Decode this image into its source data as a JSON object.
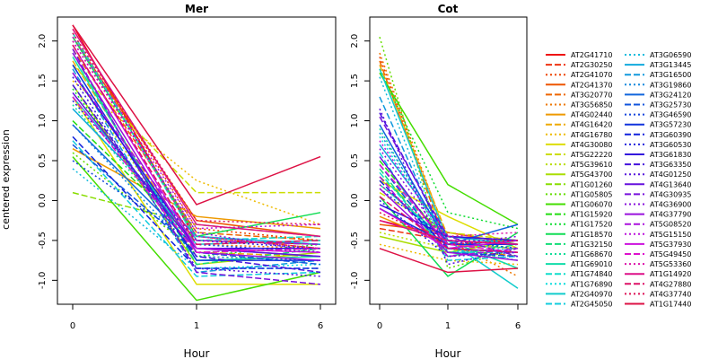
{
  "chart_data": [
    {
      "type": "line",
      "title": "Mer",
      "ylabel": "centered expression",
      "xlabel": "Hour",
      "x": [
        "0",
        "1",
        "6"
      ],
      "ylim": [
        -1.3,
        2.3
      ],
      "yticks": [
        "-1.0",
        "-0.5",
        "0.0",
        "0.5",
        "1.0",
        "1.5",
        "2.0"
      ],
      "series": [
        {
          "name": "AT2G41710",
          "values": [
            2.2,
            -0.5,
            -0.55
          ]
        },
        {
          "name": "AT2G30250",
          "values": [
            2.1,
            -0.45,
            -0.6
          ]
        },
        {
          "name": "AT2G41070",
          "values": [
            2.15,
            -0.35,
            -0.5
          ]
        },
        {
          "name": "AT2G41370",
          "values": [
            2.05,
            -0.25,
            -0.45
          ]
        },
        {
          "name": "AT3G20770",
          "values": [
            1.9,
            -0.4,
            -0.5
          ]
        },
        {
          "name": "AT3G56850",
          "values": [
            1.95,
            -0.55,
            -0.6
          ]
        },
        {
          "name": "AT4G02440",
          "values": [
            0.65,
            -0.2,
            -0.35
          ]
        },
        {
          "name": "AT4G16420",
          "values": [
            1.75,
            -0.65,
            -0.7
          ]
        },
        {
          "name": "AT4G16780",
          "values": [
            1.5,
            0.25,
            -0.3
          ]
        },
        {
          "name": "AT4G30080",
          "values": [
            1.3,
            -1.05,
            -1.05
          ]
        },
        {
          "name": "AT5G22220",
          "values": [
            1.7,
            0.1,
            0.1
          ]
        },
        {
          "name": "AT5G39610",
          "values": [
            1.6,
            -0.7,
            -0.75
          ]
        },
        {
          "name": "AT5G43700",
          "values": [
            1.45,
            -0.8,
            -0.65
          ]
        },
        {
          "name": "AT1G01260",
          "values": [
            0.1,
            -0.3,
            -0.45
          ]
        },
        {
          "name": "AT1G05805",
          "values": [
            0.6,
            -0.65,
            -0.6
          ]
        },
        {
          "name": "AT1G06070",
          "values": [
            0.55,
            -1.25,
            -0.9
          ]
        },
        {
          "name": "AT1G15920",
          "values": [
            1.0,
            -0.5,
            -0.55
          ]
        },
        {
          "name": "AT1G17520",
          "values": [
            1.4,
            -0.7,
            -0.55
          ]
        },
        {
          "name": "AT1G18570",
          "values": [
            2.05,
            -0.45,
            -0.15
          ]
        },
        {
          "name": "AT1G32150",
          "values": [
            1.85,
            -0.8,
            -0.6
          ]
        },
        {
          "name": "AT1G68670",
          "values": [
            1.2,
            -0.6,
            -0.65
          ]
        },
        {
          "name": "AT1G69010",
          "values": [
            1.8,
            -0.75,
            -0.7
          ]
        },
        {
          "name": "AT1G74840",
          "values": [
            2.1,
            -0.5,
            -0.45
          ]
        },
        {
          "name": "AT1G76890",
          "values": [
            1.55,
            -0.85,
            -0.8
          ]
        },
        {
          "name": "AT2G40970",
          "values": [
            1.3,
            -0.55,
            -0.5
          ]
        },
        {
          "name": "AT2G45050",
          "values": [
            0.75,
            -0.95,
            -0.9
          ]
        },
        {
          "name": "AT3G06590",
          "values": [
            0.4,
            -0.85,
            -0.85
          ]
        },
        {
          "name": "AT3G13445",
          "values": [
            1.15,
            -0.45,
            -0.55
          ]
        },
        {
          "name": "AT3G16500",
          "values": [
            1.65,
            -0.9,
            -0.75
          ]
        },
        {
          "name": "AT3G19860",
          "values": [
            0.95,
            -0.7,
            -0.75
          ]
        },
        {
          "name": "AT3G24120",
          "values": [
            0.95,
            -0.6,
            -0.7
          ]
        },
        {
          "name": "AT3G25730",
          "values": [
            0.7,
            -0.65,
            -0.8
          ]
        },
        {
          "name": "AT3G46590",
          "values": [
            0.5,
            -0.55,
            -0.65
          ]
        },
        {
          "name": "AT3G57230",
          "values": [
            1.7,
            -0.75,
            -0.75
          ]
        },
        {
          "name": "AT3G60390",
          "values": [
            0.8,
            -0.85,
            -0.85
          ]
        },
        {
          "name": "AT3G60530",
          "values": [
            1.25,
            -0.5,
            -0.6
          ]
        },
        {
          "name": "AT3G61830",
          "values": [
            1.6,
            -0.6,
            -0.6
          ]
        },
        {
          "name": "AT3G63350",
          "values": [
            1.45,
            -0.7,
            -0.9
          ]
        },
        {
          "name": "AT4G01250",
          "values": [
            1.55,
            -0.85,
            -0.95
          ]
        },
        {
          "name": "AT4G13640",
          "values": [
            1.35,
            -0.6,
            -0.7
          ]
        },
        {
          "name": "AT4G30935",
          "values": [
            1.9,
            -0.9,
            -1.05
          ]
        },
        {
          "name": "AT4G36900",
          "values": [
            2.0,
            -0.4,
            -0.65
          ]
        },
        {
          "name": "AT4G37790",
          "values": [
            1.85,
            -0.65,
            -0.75
          ]
        },
        {
          "name": "AT5G08520",
          "values": [
            1.6,
            -0.5,
            -0.55
          ]
        },
        {
          "name": "AT5G15150",
          "values": [
            2.05,
            -0.35,
            -0.3
          ]
        },
        {
          "name": "AT5G37930",
          "values": [
            1.95,
            -0.6,
            -0.65
          ]
        },
        {
          "name": "AT5G49450",
          "values": [
            1.3,
            -0.65,
            -0.6
          ]
        },
        {
          "name": "AT5G53360",
          "values": [
            2.0,
            -0.45,
            -0.6
          ]
        },
        {
          "name": "AT1G14920",
          "values": [
            2.15,
            -0.3,
            -0.45
          ]
        },
        {
          "name": "AT4G27880",
          "values": [
            1.95,
            -0.55,
            -0.5
          ]
        },
        {
          "name": "AT4G37740",
          "values": [
            2.1,
            -0.25,
            -0.3
          ]
        },
        {
          "name": "AT1G17440",
          "values": [
            2.2,
            -0.05,
            0.55
          ]
        }
      ]
    },
    {
      "type": "line",
      "title": "Cot",
      "xlabel": "Hour",
      "x": [
        "0",
        "1",
        "6"
      ],
      "ylim": [
        -1.3,
        2.3
      ],
      "yticks": [
        "-1.0",
        "-0.5",
        "0.0",
        "0.5",
        "1.0",
        "1.5",
        "2.0"
      ],
      "series": [
        {
          "name": "AT2G41710",
          "values": [
            -0.25,
            -0.45,
            -0.5
          ]
        },
        {
          "name": "AT2G30250",
          "values": [
            -0.35,
            -0.5,
            -0.55
          ]
        },
        {
          "name": "AT2G41070",
          "values": [
            1.8,
            -0.55,
            -0.6
          ]
        },
        {
          "name": "AT2G41370",
          "values": [
            -0.3,
            -0.4,
            -0.55
          ]
        },
        {
          "name": "AT3G20770",
          "values": [
            1.75,
            -0.6,
            -0.7
          ]
        },
        {
          "name": "AT3G56850",
          "values": [
            1.85,
            -0.5,
            -0.95
          ]
        },
        {
          "name": "AT4G02440",
          "values": [
            -0.2,
            -0.55,
            -0.6
          ]
        },
        {
          "name": "AT4G16420",
          "values": [
            1.7,
            -0.45,
            -0.55
          ]
        },
        {
          "name": "AT4G16780",
          "values": [
            -0.55,
            -0.75,
            -0.8
          ]
        },
        {
          "name": "AT4G30080",
          "values": [
            0.25,
            -0.2,
            -0.6
          ]
        },
        {
          "name": "AT5G22220",
          "values": [
            0.1,
            -0.4,
            -0.5
          ]
        },
        {
          "name": "AT5G39610",
          "values": [
            -0.4,
            -0.6,
            -0.65
          ]
        },
        {
          "name": "AT5G43700",
          "values": [
            -0.45,
            -0.65,
            -0.5
          ]
        },
        {
          "name": "AT1G01260",
          "values": [
            0.3,
            -0.45,
            -0.55
          ]
        },
        {
          "name": "AT1G05805",
          "values": [
            2.05,
            -0.85,
            -0.6
          ]
        },
        {
          "name": "AT1G06070",
          "values": [
            1.6,
            0.2,
            -0.3
          ]
        },
        {
          "name": "AT1G15920",
          "values": [
            0.5,
            -0.55,
            -0.5
          ]
        },
        {
          "name": "AT1G17520",
          "values": [
            1.65,
            -0.15,
            -0.35
          ]
        },
        {
          "name": "AT1G18570",
          "values": [
            0.05,
            -0.95,
            -0.4
          ]
        },
        {
          "name": "AT1G32150",
          "values": [
            0.4,
            -0.7,
            -0.55
          ]
        },
        {
          "name": "AT1G68670",
          "values": [
            0.9,
            -0.6,
            -0.75
          ]
        },
        {
          "name": "AT1G69010",
          "values": [
            0.2,
            -0.5,
            -0.85
          ]
        },
        {
          "name": "AT1G74840",
          "values": [
            0.35,
            -0.65,
            -0.65
          ]
        },
        {
          "name": "AT1G76890",
          "values": [
            0.8,
            -0.55,
            -0.6
          ]
        },
        {
          "name": "AT2G40970",
          "values": [
            1.65,
            -0.5,
            -1.1
          ]
        },
        {
          "name": "AT2G45050",
          "values": [
            0.6,
            -0.75,
            -0.7
          ]
        },
        {
          "name": "AT3G06590",
          "values": [
            1.55,
            -0.65,
            -0.6
          ]
        },
        {
          "name": "AT3G13445",
          "values": [
            0.7,
            -0.45,
            -0.55
          ]
        },
        {
          "name": "AT3G16500",
          "values": [
            1.3,
            -0.6,
            -0.65
          ]
        },
        {
          "name": "AT3G19860",
          "values": [
            0.85,
            -0.5,
            -0.5
          ]
        },
        {
          "name": "AT3G24120",
          "values": [
            0.95,
            -0.55,
            -0.3
          ]
        },
        {
          "name": "AT3G25730",
          "values": [
            0.45,
            -0.65,
            -0.7
          ]
        },
        {
          "name": "AT3G46590",
          "values": [
            0.15,
            -0.5,
            -0.6
          ]
        },
        {
          "name": "AT3G57230",
          "values": [
            -0.1,
            -0.55,
            -0.55
          ]
        },
        {
          "name": "AT3G60390",
          "values": [
            0.25,
            -0.6,
            -0.5
          ]
        },
        {
          "name": "AT3G60530",
          "values": [
            0.0,
            -0.7,
            -0.65
          ]
        },
        {
          "name": "AT3G61830",
          "values": [
            -0.05,
            -0.45,
            -0.5
          ]
        },
        {
          "name": "AT3G63350",
          "values": [
            1.1,
            -0.5,
            -0.55
          ]
        },
        {
          "name": "AT4G01250",
          "values": [
            1.15,
            -0.8,
            -0.6
          ]
        },
        {
          "name": "AT4G13640",
          "values": [
            0.55,
            -0.6,
            -0.65
          ]
        },
        {
          "name": "AT4G30935",
          "values": [
            1.05,
            -0.45,
            -0.7
          ]
        },
        {
          "name": "AT4G36900",
          "values": [
            0.65,
            -0.55,
            -0.45
          ]
        },
        {
          "name": "AT4G37790",
          "values": [
            0.15,
            -0.65,
            -0.75
          ]
        },
        {
          "name": "AT5G08520",
          "values": [
            0.3,
            -0.7,
            -0.6
          ]
        },
        {
          "name": "AT5G15150",
          "values": [
            0.75,
            -0.5,
            -0.55
          ]
        },
        {
          "name": "AT5G37930",
          "values": [
            -0.1,
            -0.6,
            -0.5
          ]
        },
        {
          "name": "AT5G49450",
          "values": [
            0.45,
            -0.55,
            -0.65
          ]
        },
        {
          "name": "AT5G53360",
          "values": [
            0.2,
            -0.45,
            -0.4
          ]
        },
        {
          "name": "AT1G14920",
          "values": [
            -0.25,
            -0.5,
            -0.55
          ]
        },
        {
          "name": "AT4G27880",
          "values": [
            0.05,
            -0.6,
            -0.65
          ]
        },
        {
          "name": "AT4G37740",
          "values": [
            -0.15,
            -0.55,
            -0.5
          ]
        },
        {
          "name": "AT1G17440",
          "values": [
            -0.6,
            -0.9,
            -0.85
          ]
        }
      ]
    }
  ],
  "series_styles": [
    {
      "color": "#ee1111",
      "dash": "solid"
    },
    {
      "color": "#ee3311",
      "dash": "dashed"
    },
    {
      "color": "#ee4400",
      "dash": "dotted"
    },
    {
      "color": "#ee5500",
      "dash": "solid"
    },
    {
      "color": "#ee6600",
      "dash": "dashed"
    },
    {
      "color": "#ee7700",
      "dash": "dotted"
    },
    {
      "color": "#ee9900",
      "dash": "solid"
    },
    {
      "color": "#eeaa00",
      "dash": "dashed"
    },
    {
      "color": "#eebb00",
      "dash": "dotted"
    },
    {
      "color": "#dddd00",
      "dash": "solid"
    },
    {
      "color": "#ccdd00",
      "dash": "dashed"
    },
    {
      "color": "#bbdd00",
      "dash": "dotted"
    },
    {
      "color": "#aadd00",
      "dash": "solid"
    },
    {
      "color": "#88dd00",
      "dash": "dashed"
    },
    {
      "color": "#66dd00",
      "dash": "dotted"
    },
    {
      "color": "#44dd00",
      "dash": "solid"
    },
    {
      "color": "#22dd11",
      "dash": "dashed"
    },
    {
      "color": "#11dd33",
      "dash": "dotted"
    },
    {
      "color": "#11dd55",
      "dash": "solid"
    },
    {
      "color": "#11dd77",
      "dash": "dashed"
    },
    {
      "color": "#11dd99",
      "dash": "dotted"
    },
    {
      "color": "#11ddaa",
      "dash": "solid"
    },
    {
      "color": "#11ddcc",
      "dash": "dashed"
    },
    {
      "color": "#11dddd",
      "dash": "dotted"
    },
    {
      "color": "#11cccc",
      "dash": "solid"
    },
    {
      "color": "#11ccdd",
      "dash": "dashed"
    },
    {
      "color": "#11bbdd",
      "dash": "dotted"
    },
    {
      "color": "#11aadd",
      "dash": "solid"
    },
    {
      "color": "#1199dd",
      "dash": "dashed"
    },
    {
      "color": "#1188dd",
      "dash": "dotted"
    },
    {
      "color": "#1166dd",
      "dash": "solid"
    },
    {
      "color": "#1155dd",
      "dash": "dashed"
    },
    {
      "color": "#1144dd",
      "dash": "dotted"
    },
    {
      "color": "#1133dd",
      "dash": "solid"
    },
    {
      "color": "#1122dd",
      "dash": "dashed"
    },
    {
      "color": "#2222dd",
      "dash": "dotted"
    },
    {
      "color": "#3311dd",
      "dash": "solid"
    },
    {
      "color": "#4411dd",
      "dash": "dashed"
    },
    {
      "color": "#5511dd",
      "dash": "dotted"
    },
    {
      "color": "#6611dd",
      "dash": "solid"
    },
    {
      "color": "#7711dd",
      "dash": "dashed"
    },
    {
      "color": "#8811dd",
      "dash": "dotted"
    },
    {
      "color": "#9911dd",
      "dash": "solid"
    },
    {
      "color": "#aa11dd",
      "dash": "dashed"
    },
    {
      "color": "#bb11dd",
      "dash": "dotted"
    },
    {
      "color": "#cc11dd",
      "dash": "solid"
    },
    {
      "color": "#dd11cc",
      "dash": "dashed"
    },
    {
      "color": "#dd11aa",
      "dash": "dotted"
    },
    {
      "color": "#dd1188",
      "dash": "solid"
    },
    {
      "color": "#dd1166",
      "dash": "dashed"
    },
    {
      "color": "#dd1155",
      "dash": "dotted"
    },
    {
      "color": "#dd1144",
      "dash": "solid"
    }
  ]
}
